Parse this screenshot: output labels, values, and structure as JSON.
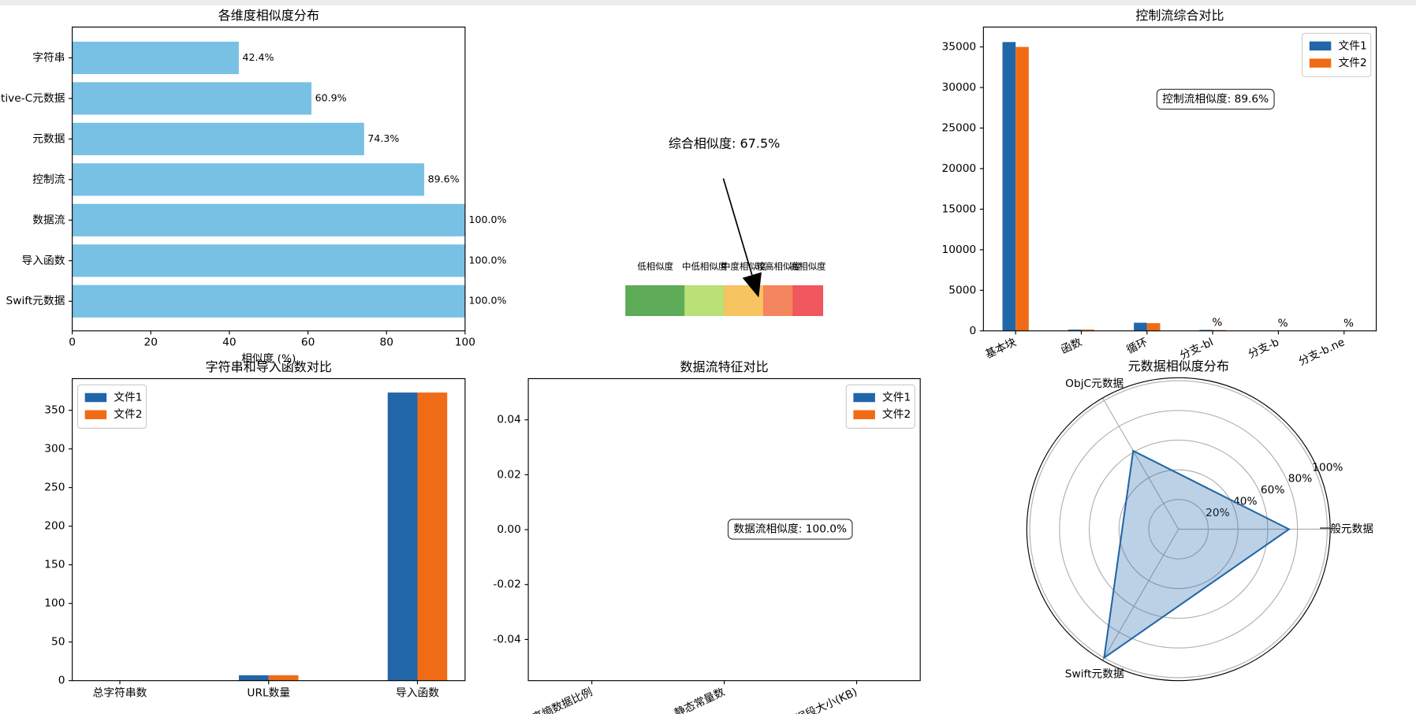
{
  "chart_data": [
    {
      "type": "barh",
      "title": "各维度相似度分布",
      "categories": [
        "Swift元数据",
        "导入函数",
        "数据流",
        "控制流",
        "元数据",
        "Objective-C元数据",
        "字符串"
      ],
      "values": [
        100,
        100,
        100,
        89.6,
        74.3,
        60.9,
        42.4
      ],
      "value_labels": [
        "100.0%",
        "100.0%",
        "100.0%",
        "89.6%",
        "74.3%",
        "60.9%",
        "42.4%"
      ],
      "color": "#78c1e4",
      "xlim": [
        0,
        100
      ],
      "xticks": [
        0,
        20,
        40,
        60,
        80,
        100
      ],
      "xlabel": "相似度 (%)"
    },
    {
      "type": "gauge",
      "annotation": "综合相似度: 67.5%",
      "value": 67.5,
      "bins": [
        0,
        30,
        50,
        70,
        85,
        100
      ],
      "categories": [
        "低相似度",
        "中低相似度",
        "中度相似度",
        "较高相似度",
        "高相似度"
      ],
      "colors": [
        "#55a64f",
        "#b5df71",
        "#f7c15a",
        "#f37f56",
        "#ef4e55"
      ],
      "xlim": [
        0,
        100
      ]
    },
    {
      "type": "bar",
      "title": "控制流综合对比",
      "categories": [
        "基本块",
        "函数",
        "循环",
        "分支-bl",
        "分支-b",
        "分支-b.ne"
      ],
      "series": [
        {
          "name": "文件1",
          "color": "#2166a8",
          "values": [
            35600,
            150,
            1000,
            120,
            0,
            0
          ]
        },
        {
          "name": "文件2",
          "color": "#f06b16",
          "values": [
            35000,
            150,
            950,
            100,
            0,
            0
          ]
        }
      ],
      "bar_labels": [
        null,
        null,
        null,
        "%",
        "%",
        "%"
      ],
      "annotation": "控制流相似度: 89.6%",
      "ylim": [
        0,
        37450
      ],
      "yticks": [
        0,
        5000,
        10000,
        15000,
        20000,
        25000,
        30000,
        35000
      ],
      "legend": "upper right"
    },
    {
      "type": "bar",
      "title": "字符串和导入函数对比",
      "categories": [
        "总字符串数",
        "URL数量",
        "导入函数"
      ],
      "series": [
        {
          "name": "文件1",
          "color": "#2166a8",
          "values": [
            0,
            7,
            373
          ]
        },
        {
          "name": "文件2",
          "color": "#f06b16",
          "values": [
            0,
            7,
            373
          ]
        }
      ],
      "ylim": [
        0,
        391
      ],
      "yticks": [
        0,
        50,
        100,
        150,
        200,
        250,
        300,
        350
      ],
      "legend": "upper left"
    },
    {
      "type": "bar",
      "title": "数据流特征对比",
      "categories": [
        "高熵数据比例",
        "静态常量数",
        "数据段大小(KB)"
      ],
      "series": [
        {
          "name": "文件1",
          "color": "#2166a8",
          "values": [
            0,
            0,
            0
          ]
        },
        {
          "name": "文件2",
          "color": "#f06b16",
          "values": [
            0,
            0,
            0
          ]
        }
      ],
      "annotation": "数据流相似度: 100.0%",
      "ylim": [
        -0.055,
        0.055
      ],
      "yticks": [
        -0.04,
        -0.02,
        {
          "value": 0,
          "label": "0.00"
        },
        0.02,
        0.04
      ],
      "legend": "upper right"
    },
    {
      "type": "radar",
      "title": "元数据相似度分布",
      "categories": [
        "一般元数据",
        "ObjC元数据",
        "Swift元数据"
      ],
      "values": [
        74.3,
        60.9,
        100
      ],
      "color": "#2166a8",
      "ylim": [
        0,
        102
      ],
      "yticks": [
        {
          "value": 20,
          "label": "20%"
        },
        {
          "value": 40,
          "label": "40%"
        },
        {
          "value": 60,
          "label": "60%"
        },
        {
          "value": 80,
          "label": "80%"
        },
        {
          "value": 100,
          "label": "100%"
        }
      ]
    }
  ]
}
